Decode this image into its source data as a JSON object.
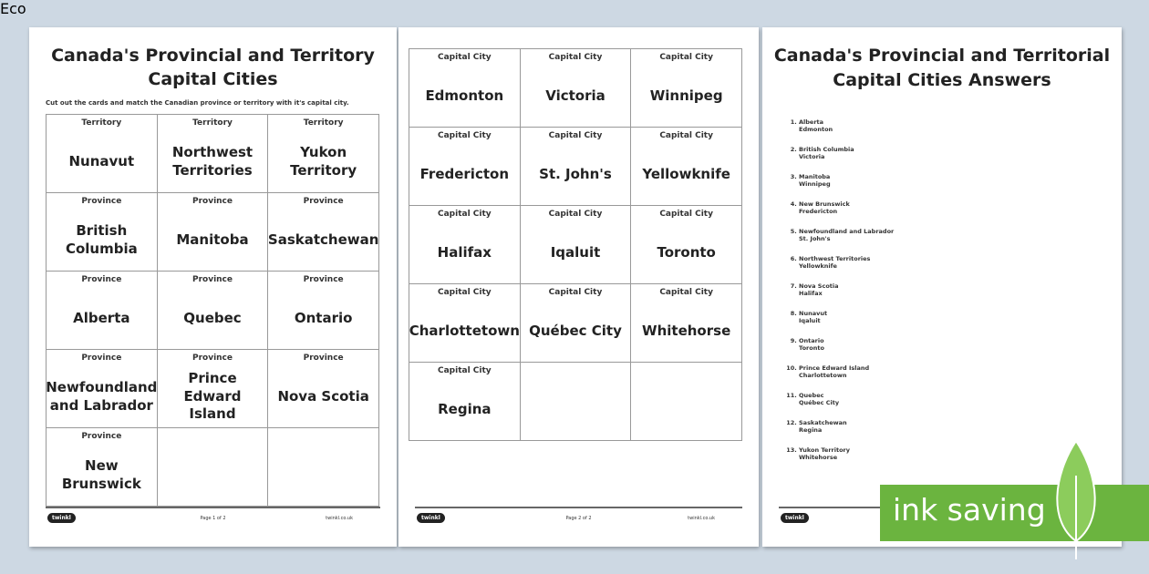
{
  "page1": {
    "title_line1": "Canada's Provincial and Territory",
    "title_line2": "Capital Cities",
    "instruction": "Cut out the cards and match the Canadian province or territory with it's capital city.",
    "cards": [
      {
        "label": "Territory",
        "name": "Nunavut"
      },
      {
        "label": "Territory",
        "name": "Northwest Territories"
      },
      {
        "label": "Territory",
        "name": "Yukon Territory"
      },
      {
        "label": "Province",
        "name": "British Columbia"
      },
      {
        "label": "Province",
        "name": "Manitoba"
      },
      {
        "label": "Province",
        "name": "Saskatchewan"
      },
      {
        "label": "Province",
        "name": "Alberta"
      },
      {
        "label": "Province",
        "name": "Quebec"
      },
      {
        "label": "Province",
        "name": "Ontario"
      },
      {
        "label": "Province",
        "name": "Newfoundland and Labrador"
      },
      {
        "label": "Province",
        "name": "Prince Edward Island"
      },
      {
        "label": "Province",
        "name": "Nova Scotia"
      },
      {
        "label": "Province",
        "name": "New Brunswick"
      }
    ],
    "footer": {
      "logo": "twinkl",
      "page": "Page 1 of 2",
      "site": "twinkl.co.uk"
    }
  },
  "page2": {
    "cards": [
      {
        "label": "Capital City",
        "name": "Edmonton"
      },
      {
        "label": "Capital City",
        "name": "Victoria"
      },
      {
        "label": "Capital City",
        "name": "Winnipeg"
      },
      {
        "label": "Capital City",
        "name": "Fredericton"
      },
      {
        "label": "Capital City",
        "name": "St. John's"
      },
      {
        "label": "Capital City",
        "name": "Yellowknife"
      },
      {
        "label": "Capital City",
        "name": "Halifax"
      },
      {
        "label": "Capital City",
        "name": "Iqaluit"
      },
      {
        "label": "Capital City",
        "name": "Toronto"
      },
      {
        "label": "Capital City",
        "name": "Charlottetown"
      },
      {
        "label": "Capital City",
        "name": "Québec City"
      },
      {
        "label": "Capital City",
        "name": "Whitehorse"
      },
      {
        "label": "Capital City",
        "name": "Regina"
      }
    ],
    "footer": {
      "logo": "twinkl",
      "page": "Page 2 of 2",
      "site": "twinkl.co.uk"
    }
  },
  "page3": {
    "title_line1": "Canada's Provincial and Territorial",
    "title_line2": "Capital Cities Answers",
    "answers": [
      {
        "province": "Alberta",
        "capital": "Edmonton"
      },
      {
        "province": "British Columbia",
        "capital": "Victoria"
      },
      {
        "province": "Manitoba",
        "capital": "Winnipeg"
      },
      {
        "province": "New Brunswick",
        "capital": "Fredericton"
      },
      {
        "province": "Newfoundland and Labrador",
        "capital": "St. John's"
      },
      {
        "province": "Northwest Territories",
        "capital": "Yellowknife"
      },
      {
        "province": "Nova Scotia",
        "capital": "Halifax"
      },
      {
        "province": "Nunavut",
        "capital": "Iqaluit"
      },
      {
        "province": "Ontario",
        "capital": "Toronto"
      },
      {
        "province": "Prince Edward Island",
        "capital": "Charlottetown"
      },
      {
        "province": "Quebec",
        "capital": "Québec City"
      },
      {
        "province": "Saskatchewan",
        "capital": "Regina"
      },
      {
        "province": "Yukon Territory",
        "capital": "Whitehorse"
      }
    ],
    "footer": {
      "logo": "twinkl"
    }
  },
  "badge": {
    "text": "ink saving",
    "eco": "Eco"
  }
}
